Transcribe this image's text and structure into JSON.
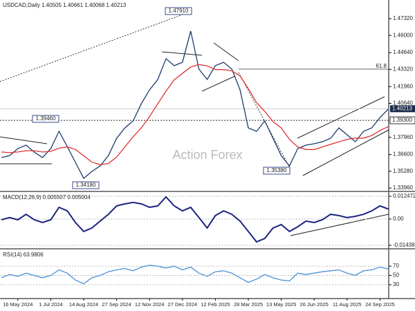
{
  "chart_data": [
    {
      "type": "line",
      "title": "USDCAD,Daily 1.40505 1.40661 1.40068 1.40213",
      "watermark": "Action Forex",
      "categories": [
        null,
        null,
        "16 May 2024",
        null,
        null,
        null,
        "1 Jul 2024",
        null,
        null,
        null,
        "14 Aug 2024",
        null,
        null,
        null,
        "27 Sep 2024",
        null,
        null,
        null,
        "12 Nov 2024",
        null,
        null,
        null,
        "27 Dec 2024",
        null,
        null,
        null,
        "12 Feb 2025",
        null,
        null,
        null,
        "28 Mar 2025",
        null,
        null,
        null,
        "13 May 2025",
        null,
        null,
        null,
        "26 Jun 2025",
        null,
        null,
        null,
        "11 Aug 2025",
        null,
        null,
        null,
        "24 Sep 2025",
        null
      ],
      "series": [
        {
          "name": "USDCAD",
          "color": "#1a3a6b",
          "values": [
            1.3636,
            1.3652,
            1.3707,
            1.3734,
            1.3679,
            1.3636,
            1.3707,
            1.3843,
            1.3723,
            1.3598,
            1.3472,
            1.3527,
            1.357,
            1.3652,
            1.3788,
            1.387,
            1.3925,
            1.4061,
            1.417,
            1.4252,
            1.4416,
            1.4361,
            1.4388,
            1.4634,
            1.4334,
            1.4252,
            1.4361,
            1.4388,
            1.4334,
            1.417,
            1.387,
            1.3843,
            1.3925,
            1.3788,
            1.3652,
            1.357,
            1.3707,
            1.3734,
            1.3745,
            1.3761,
            1.3788,
            1.387,
            1.3816,
            1.3761,
            1.3843,
            1.387,
            1.3952,
            1.4018
          ]
        },
        {
          "name": "MA",
          "color": "#e03030",
          "values": [
            1.368,
            1.3675,
            1.368,
            1.369,
            1.369,
            1.368,
            1.3685,
            1.371,
            1.372,
            1.37,
            1.365,
            1.36,
            1.358,
            1.359,
            1.364,
            1.372,
            1.38,
            1.387,
            1.396,
            1.406,
            1.416,
            1.425,
            1.43,
            1.435,
            1.437,
            1.436,
            1.433,
            1.433,
            1.432,
            1.428,
            1.418,
            1.407,
            1.4,
            1.392,
            1.387,
            1.378,
            1.372,
            1.37,
            1.37,
            1.372,
            1.374,
            1.376,
            1.378,
            1.379,
            1.379,
            1.381,
            1.385,
            1.388
          ]
        }
      ],
      "ylim": [
        1.3369,
        1.4879
      ],
      "yticks": [
        {
          "value": 1.4732,
          "label": "1.47320"
        },
        {
          "value": 1.46,
          "label": "1.46000"
        },
        {
          "value": 1.4464,
          "label": "1.44640"
        },
        {
          "value": 1.4332,
          "label": "1.43320"
        },
        {
          "value": 1.4196,
          "label": "1.41960"
        },
        {
          "value": 1.4064,
          "label": "1.40640"
        },
        {
          "value": 1.3796,
          "label": "1.37960"
        },
        {
          "value": 1.366,
          "label": "1.36600"
        },
        {
          "value": 1.3528,
          "label": "1.35280"
        },
        {
          "value": 1.3396,
          "label": "1.33960"
        }
      ],
      "levels": [
        {
          "value": 1.4334,
          "label": "61.8"
        },
        {
          "value": 1.393,
          "label": "1.39300"
        },
        {
          "value": 1.40213,
          "label": "1.40213"
        }
      ],
      "annotations": [
        "1.47910",
        "1.39460",
        "1.34180",
        "1.35380"
      ]
    },
    {
      "type": "line",
      "title": "MACD(12,26,9) 0.005507 0.005004",
      "series": [
        {
          "name": "MACD",
          "color": "#1a237e",
          "values": [
            -0.0004,
            0.0008,
            -0.0004,
            0.0026,
            -0.0004,
            -0.0019,
            -0.0004,
            0.0064,
            0.0045,
            -0.0019,
            -0.0068,
            -0.0049,
            -0.0011,
            0.0026,
            0.0072,
            0.0083,
            0.0091,
            0.0083,
            0.0064,
            0.0072,
            0.0121,
            0.0072,
            0.0045,
            0.0064,
            0.0008,
            -0.0049,
            0.0019,
            0.0045,
            0.0026,
            -0.0011,
            -0.0068,
            -0.0125,
            -0.0106,
            -0.0049,
            -0.003,
            -0.0068,
            -0.0042,
            -0.0011,
            -0.0019,
            -0.0004,
            0.0026,
            0.0019,
            0.0008,
            0.0015,
            0.0026,
            0.0045,
            0.0072,
            0.0055
          ]
        }
      ],
      "ylim": [
        -0.01628,
        0.01474
      ],
      "yticks": [
        0.012472,
        {
          "value": 0,
          "label": "0.00"
        },
        -0.014389
      ]
    },
    {
      "type": "line",
      "title": "RSI(14) 63.9806",
      "series": [
        {
          "name": "RSI",
          "color": "#4a90d9",
          "values": [
            45,
            52,
            48,
            55,
            50,
            45,
            50,
            62,
            55,
            40,
            32,
            45,
            50,
            58,
            62,
            65,
            60,
            68,
            72,
            70,
            66,
            70,
            62,
            68,
            55,
            48,
            58,
            60,
            55,
            45,
            35,
            42,
            52,
            45,
            40,
            38,
            55,
            52,
            55,
            58,
            60,
            62,
            55,
            50,
            60,
            62,
            68,
            64
          ]
        }
      ],
      "ylim": [
        0,
        106
      ],
      "yticks": [
        70,
        50,
        30
      ]
    }
  ]
}
